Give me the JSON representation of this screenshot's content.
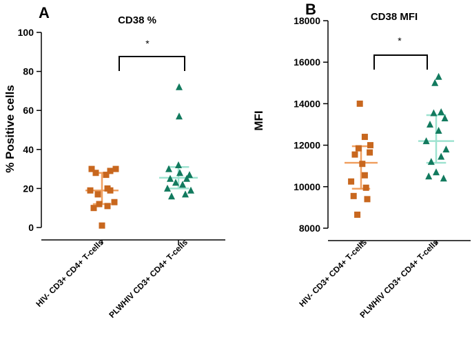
{
  "colors": {
    "group1": "#C8671E",
    "group1_line": "#F0A060",
    "group2": "#127A5E",
    "group2_line": "#9EE3D0",
    "axis": "#000000"
  },
  "chart_data": [
    {
      "panel": "A",
      "type": "scatter",
      "title": "CD38 %",
      "ylabel": "% Positive cells",
      "xlabel": "",
      "ylim": [
        0,
        100
      ],
      "yticks": [
        "0",
        "20",
        "40",
        "60",
        "80",
        "100"
      ],
      "grid": false,
      "categories": [
        "HIV- CD3+ CD4+ T-cells",
        "PLWHIV CD3+ CD4+ T-cells"
      ],
      "series": [
        {
          "name": "HIV- CD3+ CD4+ T-cells",
          "marker": "square",
          "values": [
            1,
            10,
            11,
            12,
            13,
            17,
            19,
            19,
            20,
            27,
            28,
            29,
            30,
            30
          ],
          "jitter": [
            0,
            -0.6,
            0.4,
            -0.2,
            0.9,
            -0.3,
            0.6,
            -0.85,
            0.4,
            0.3,
            -0.45,
            0.6,
            -0.75,
            1.0
          ],
          "summary": {
            "center": 19,
            "lower": 12,
            "upper": 28
          }
        },
        {
          "name": "PLWHIV CD3+ CD4+ T-cells",
          "marker": "triangle",
          "values": [
            16,
            17,
            19,
            20,
            22,
            23,
            25,
            25,
            27,
            28,
            30,
            32,
            57,
            72
          ],
          "jitter": [
            -0.5,
            0.5,
            0.9,
            -0.8,
            0.3,
            -0.2,
            -0.6,
            0.6,
            0.8,
            0.1,
            -0.7,
            0.0,
            0.05,
            0.05
          ],
          "summary": {
            "center": 25.5,
            "lower": 20,
            "upper": 31
          }
        }
      ],
      "significance": "*"
    },
    {
      "panel": "B",
      "type": "scatter",
      "title": "CD38 MFI",
      "ylabel": "MFI",
      "xlabel": "",
      "ylim": [
        8000,
        18000
      ],
      "yticks": [
        "8000",
        "10000",
        "12000",
        "14000",
        "16000",
        "18000"
      ],
      "grid": false,
      "categories": [
        "HIV- CD3+ CD4+ T-cells",
        "PLWHIV CD3+ CD4+ T-cells"
      ],
      "series": [
        {
          "name": "HIV- CD3+ CD4+ T-cells",
          "marker": "square",
          "values": [
            8650,
            9400,
            9550,
            9950,
            10250,
            10550,
            11100,
            11550,
            11650,
            11850,
            12000,
            12400,
            14000
          ],
          "jitter": [
            -0.3,
            0.5,
            -0.6,
            0.4,
            -0.8,
            0.3,
            0.1,
            -0.5,
            0.7,
            -0.2,
            0.75,
            0.3,
            -0.1
          ],
          "summary": {
            "center": 11150,
            "lower": 9900,
            "upper": 11950
          }
        },
        {
          "name": "PLWHIV CD3+ CD4+ T-cells",
          "marker": "triangle",
          "values": [
            10400,
            10500,
            10700,
            11200,
            11450,
            11800,
            12200,
            12700,
            13000,
            13300,
            13550,
            13600,
            15000,
            15300
          ],
          "jitter": [
            0.6,
            -0.6,
            0.0,
            -0.4,
            0.4,
            0.8,
            -0.8,
            0.2,
            -0.5,
            0.7,
            -0.2,
            0.4,
            -0.1,
            0.2
          ],
          "summary": {
            "center": 12200,
            "lower": 11150,
            "upper": 13450
          }
        }
      ],
      "significance": "*"
    }
  ]
}
